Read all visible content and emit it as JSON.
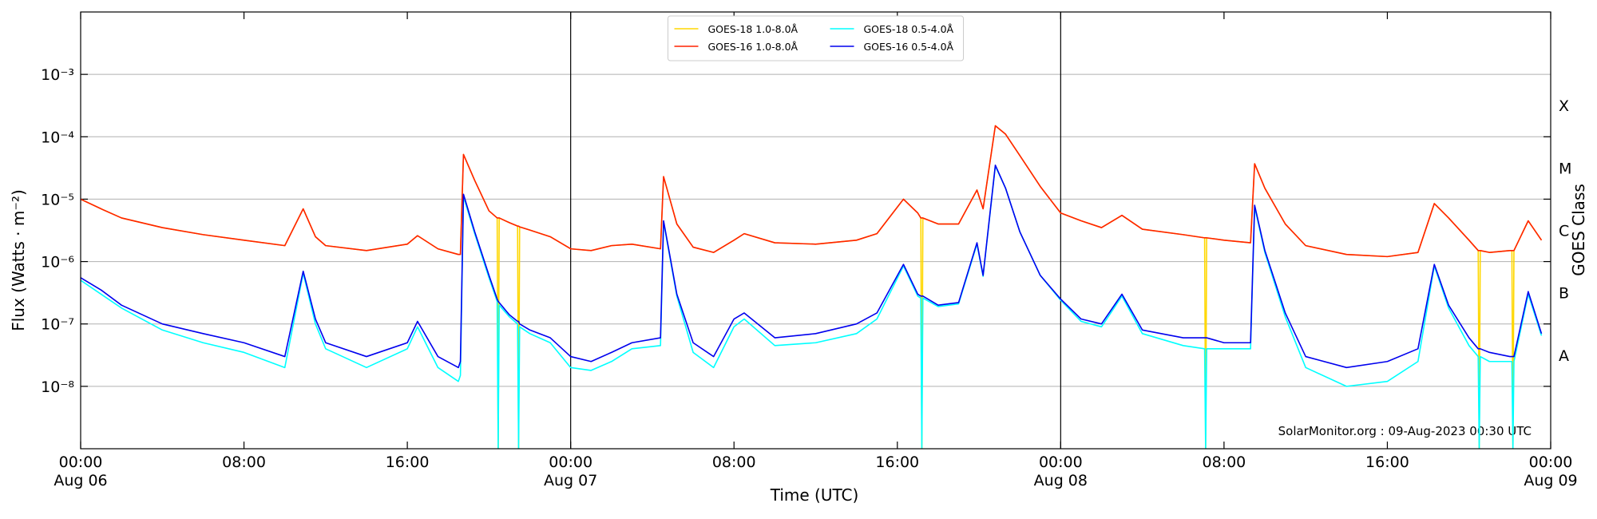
{
  "chart_data": {
    "type": "line",
    "xlabel": "Time (UTC)",
    "ylabel": "Flux (Watts · m⁻²)",
    "y2label": "GOES Class",
    "annotation": "SolarMonitor.org : 09-Aug-2023 00:30 UTC",
    "log_y": true,
    "grid": true,
    "legend": "upper center",
    "legend_columns": 2,
    "x": [
      0,
      1,
      2,
      4,
      6,
      8,
      10,
      10.9,
      11.5,
      12,
      14,
      16,
      16.5,
      17.5,
      18.5,
      18.6,
      18.75,
      19.3,
      20,
      20.4,
      20.45,
      20.5,
      21,
      21.4,
      21.45,
      21.5,
      22,
      23,
      24,
      25,
      26,
      27,
      28.4,
      28.55,
      29.2,
      30,
      31,
      32,
      32.5,
      34,
      36,
      38,
      39,
      40.3,
      41,
      41.15,
      41.2,
      41.25,
      42,
      43,
      43.9,
      44.2,
      44.8,
      45.3,
      46,
      47,
      48,
      49,
      50,
      51,
      52,
      54,
      55.05,
      55.1,
      55.15,
      56,
      57.3,
      57.5,
      58,
      59,
      60,
      62,
      64,
      65.5,
      66.3,
      67,
      68,
      68.45,
      68.5,
      68.55,
      69,
      70,
      70.1,
      70.15,
      70.2,
      70.9,
      71.55
    ],
    "xlim": [
      0,
      72
    ],
    "xticks": [
      {
        "value": 0,
        "label": "00:00"
      },
      {
        "value": 8,
        "label": "08:00"
      },
      {
        "value": 16,
        "label": "16:00"
      },
      {
        "value": 24,
        "label": "00:00"
      },
      {
        "value": 32,
        "label": "08:00"
      },
      {
        "value": 40,
        "label": "16:00"
      },
      {
        "value": 48,
        "label": "00:00"
      },
      {
        "value": 56,
        "label": "08:00"
      },
      {
        "value": 64,
        "label": "16:00"
      },
      {
        "value": 72,
        "label": "00:00"
      }
    ],
    "xtick_dates": [
      {
        "value": 0,
        "label": "Aug 06"
      },
      {
        "value": 24,
        "label": "Aug 07"
      },
      {
        "value": 48,
        "label": "Aug 08"
      },
      {
        "value": 72,
        "label": "Aug 09"
      }
    ],
    "vlines": [
      24,
      48
    ],
    "ylim": [
      1e-09,
      0.01
    ],
    "yticks": [
      {
        "value": 1e-08,
        "label": "10⁻⁸"
      },
      {
        "value": 1e-07,
        "label": "10⁻⁷"
      },
      {
        "value": 1e-06,
        "label": "10⁻⁶"
      },
      {
        "value": 1e-05,
        "label": "10⁻⁵"
      },
      {
        "value": 0.0001,
        "label": "10⁻⁴"
      },
      {
        "value": 0.001,
        "label": "10⁻³"
      }
    ],
    "y2ticks": [
      {
        "value": 1e-08,
        "label": "A"
      },
      {
        "value": 1e-07,
        "label": "B"
      },
      {
        "value": 1e-06,
        "label": "C"
      },
      {
        "value": 1e-05,
        "label": "M"
      },
      {
        "value": 0.0001,
        "label": "X"
      }
    ],
    "series": [
      {
        "name": "GOES-18 1.0-8.0Å",
        "color": "#ffd700",
        "values": [
          1e-05,
          7e-06,
          5e-06,
          3.5e-06,
          2.7e-06,
          2.2e-06,
          1.8e-06,
          7e-06,
          2.5e-06,
          1.8e-06,
          1.5e-06,
          1.9e-06,
          2.6e-06,
          1.6e-06,
          1.3e-06,
          1.3e-06,
          5.2e-05,
          2e-05,
          6.5e-06,
          5e-06,
          1e-09,
          5e-06,
          4.2e-06,
          3.7e-06,
          1e-09,
          3.6e-06,
          3.2e-06,
          2.5e-06,
          1.6e-06,
          1.5e-06,
          1.8e-06,
          1.9e-06,
          1.6e-06,
          2.3e-05,
          4e-06,
          1.7e-06,
          1.4e-06,
          2.2e-06,
          2.8e-06,
          2e-06,
          1.9e-06,
          2.2e-06,
          2.8e-06,
          1e-05,
          6e-06,
          5e-06,
          1e-09,
          5e-06,
          4e-06,
          4e-06,
          1.4e-05,
          7e-06,
          0.00015,
          0.00011,
          5e-05,
          1.6e-05,
          6e-06,
          4.5e-06,
          3.5e-06,
          5.5e-06,
          3.3e-06,
          2.7e-06,
          2.4e-06,
          1e-09,
          2.4e-06,
          2.2e-06,
          2e-06,
          3.7e-05,
          1.5e-05,
          4e-06,
          1.8e-06,
          1.3e-06,
          1.2e-06,
          1.4e-06,
          8.5e-06,
          5e-06,
          2.2e-06,
          1.5e-06,
          1e-09,
          1.5e-06,
          1.4e-06,
          1.5e-06,
          1.5e-06,
          1e-09,
          1.5e-06,
          4.5e-06,
          2.2e-06
        ]
      },
      {
        "name": "GOES-16 1.0-8.0Å",
        "color": "#ff2200",
        "values": [
          1e-05,
          7e-06,
          5e-06,
          3.5e-06,
          2.7e-06,
          2.2e-06,
          1.8e-06,
          7e-06,
          2.5e-06,
          1.8e-06,
          1.5e-06,
          1.9e-06,
          2.6e-06,
          1.6e-06,
          1.3e-06,
          1.3e-06,
          5.2e-05,
          2e-05,
          6.5e-06,
          5e-06,
          5e-06,
          5e-06,
          4.2e-06,
          3.7e-06,
          3.7e-06,
          3.6e-06,
          3.2e-06,
          2.5e-06,
          1.6e-06,
          1.5e-06,
          1.8e-06,
          1.9e-06,
          1.6e-06,
          2.3e-05,
          4e-06,
          1.7e-06,
          1.4e-06,
          2.2e-06,
          2.8e-06,
          2e-06,
          1.9e-06,
          2.2e-06,
          2.8e-06,
          1e-05,
          6e-06,
          5e-06,
          5e-06,
          5e-06,
          4e-06,
          4e-06,
          1.4e-05,
          7e-06,
          0.00015,
          0.00011,
          5e-05,
          1.6e-05,
          6e-06,
          4.5e-06,
          3.5e-06,
          5.5e-06,
          3.3e-06,
          2.7e-06,
          2.4e-06,
          2.4e-06,
          2.4e-06,
          2.2e-06,
          2e-06,
          3.7e-05,
          1.5e-05,
          4e-06,
          1.8e-06,
          1.3e-06,
          1.2e-06,
          1.4e-06,
          8.5e-06,
          5e-06,
          2.2e-06,
          1.5e-06,
          1.5e-06,
          1.5e-06,
          1.4e-06,
          1.5e-06,
          1.5e-06,
          1.5e-06,
          1.5e-06,
          4.5e-06,
          2.2e-06
        ]
      },
      {
        "name": "GOES-18 0.5-4.0Å",
        "color": "#00ffff",
        "values": [
          5e-07,
          3e-07,
          1.8e-07,
          8e-08,
          5e-08,
          3.5e-08,
          2e-08,
          6.5e-07,
          1e-07,
          4e-08,
          2e-08,
          4e-08,
          9e-08,
          2e-08,
          1.2e-08,
          1.5e-08,
          1.1e-05,
          2.8e-06,
          5.5e-07,
          2.3e-07,
          1e-09,
          2e-07,
          1.3e-07,
          1e-07,
          1e-09,
          9e-08,
          7e-08,
          5e-08,
          2e-08,
          1.8e-08,
          2.5e-08,
          4e-08,
          4.5e-08,
          4.3e-06,
          2.8e-07,
          3.5e-08,
          2e-08,
          9e-08,
          1.2e-07,
          4.5e-08,
          5e-08,
          7e-08,
          1.2e-07,
          8.5e-07,
          2.8e-07,
          2.6e-07,
          1e-09,
          2.6e-07,
          1.9e-07,
          2.1e-07,
          1.9e-06,
          5.8e-07,
          3.4e-05,
          1.5e-05,
          3e-06,
          6e-07,
          2.4e-07,
          1.1e-07,
          9e-08,
          2.8e-07,
          7e-08,
          4.5e-08,
          4e-08,
          1e-09,
          4e-08,
          4e-08,
          4e-08,
          7.5e-06,
          1.4e-06,
          1.3e-07,
          2e-08,
          1e-08,
          1.2e-08,
          2.5e-08,
          8.5e-07,
          1.8e-07,
          4.5e-08,
          3e-08,
          1e-09,
          3e-08,
          2.5e-08,
          2.5e-08,
          2.5e-08,
          1e-09,
          2.5e-08,
          3e-07,
          6.5e-08
        ]
      },
      {
        "name": "GOES-16 0.5-4.0Å",
        "color": "#0000ee",
        "values": [
          5.5e-07,
          3.5e-07,
          2e-07,
          1e-07,
          7e-08,
          5e-08,
          3e-08,
          7e-07,
          1.2e-07,
          5e-08,
          3e-08,
          5e-08,
          1.1e-07,
          3e-08,
          2e-08,
          2.5e-08,
          1.2e-05,
          3e-06,
          6e-07,
          2.5e-07,
          2.3e-07,
          2.2e-07,
          1.4e-07,
          1.1e-07,
          1.1e-07,
          1e-07,
          8e-08,
          6e-08,
          3e-08,
          2.5e-08,
          3.5e-08,
          5e-08,
          6e-08,
          4.5e-06,
          3e-07,
          5e-08,
          3e-08,
          1.2e-07,
          1.5e-07,
          6e-08,
          7e-08,
          1e-07,
          1.5e-07,
          9e-07,
          3e-07,
          2.8e-07,
          2.8e-07,
          2.8e-07,
          2e-07,
          2.2e-07,
          2e-06,
          6e-07,
          3.5e-05,
          1.5e-05,
          3e-06,
          6e-07,
          2.5e-07,
          1.2e-07,
          1e-07,
          3e-07,
          8e-08,
          6e-08,
          6e-08,
          6e-08,
          6e-08,
          5e-08,
          5e-08,
          8e-06,
          1.5e-06,
          1.5e-07,
          3e-08,
          2e-08,
          2.5e-08,
          4e-08,
          9e-07,
          2e-07,
          6e-08,
          4e-08,
          4e-08,
          4e-08,
          3.5e-08,
          3e-08,
          3e-08,
          3e-08,
          3e-08,
          3.3e-07,
          7e-08
        ]
      }
    ]
  }
}
